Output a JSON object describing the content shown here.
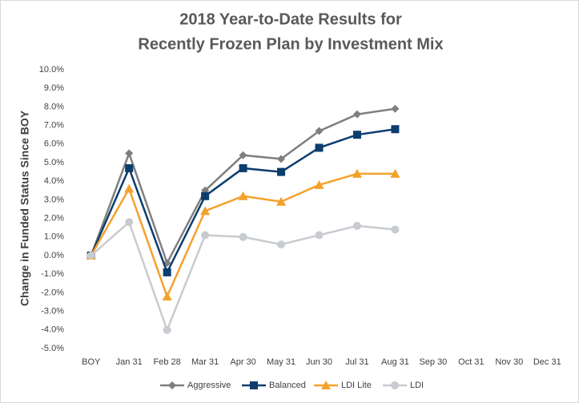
{
  "chart_data": {
    "type": "line",
    "title": [
      "2018 Year-to-Date Results for",
      "Recently Frozen Plan by Investment Mix"
    ],
    "y_label": "Change in Funded Status Since BOY",
    "categories": [
      "BOY",
      "Jan 31",
      "Feb 28",
      "Mar 31",
      "Apr 30",
      "May 31",
      "Jun 30",
      "Jul 31",
      "Aug 31",
      "Sep 30",
      "Oct 31",
      "Nov 30",
      "Dec 31"
    ],
    "series": [
      {
        "name": "Aggressive",
        "color": "#7f7f7f",
        "marker": "diamond",
        "values": [
          0,
          5.5,
          -0.4,
          3.5,
          5.4,
          5.2,
          6.7,
          7.6,
          7.9,
          null,
          null,
          null,
          null
        ]
      },
      {
        "name": "Balanced",
        "color": "#0b3d6e",
        "marker": "square",
        "values": [
          0,
          4.7,
          -0.9,
          3.2,
          4.7,
          4.5,
          5.8,
          6.5,
          6.8,
          null,
          null,
          null,
          null
        ]
      },
      {
        "name": "LDI Lite",
        "color": "#f4a12c",
        "marker": "triangle",
        "values": [
          0,
          3.6,
          -2.2,
          2.4,
          3.2,
          2.9,
          3.8,
          4.4,
          4.4,
          null,
          null,
          null,
          null
        ]
      },
      {
        "name": "LDI",
        "color": "#c8cbd0",
        "marker": "circle",
        "values": [
          0,
          1.8,
          -4.0,
          1.1,
          1.0,
          0.6,
          1.1,
          1.6,
          1.4,
          null,
          null,
          null,
          null
        ]
      }
    ],
    "ylim": [
      -5,
      10
    ],
    "yticks": [
      {
        "value": -5,
        "label": "-5.0%"
      },
      {
        "value": -4,
        "label": "-4.0%"
      },
      {
        "value": -3,
        "label": "-3.0%"
      },
      {
        "value": -2,
        "label": "-2.0%"
      },
      {
        "value": -1,
        "label": "-1.0%"
      },
      {
        "value": 0,
        "label": "0.0%"
      },
      {
        "value": 1,
        "label": "1.0%"
      },
      {
        "value": 2,
        "label": "2.0%"
      },
      {
        "value": 3,
        "label": "3.0%"
      },
      {
        "value": 4,
        "label": "4.0%"
      },
      {
        "value": 5,
        "label": "5.0%"
      },
      {
        "value": 6,
        "label": "6.0%"
      },
      {
        "value": 7,
        "label": "7.0%"
      },
      {
        "value": 8,
        "label": "8.0%"
      },
      {
        "value": 9,
        "label": "9.0%"
      },
      {
        "value": 10,
        "label": "10.0%"
      }
    ],
    "grid": false,
    "legend": "bottom"
  }
}
